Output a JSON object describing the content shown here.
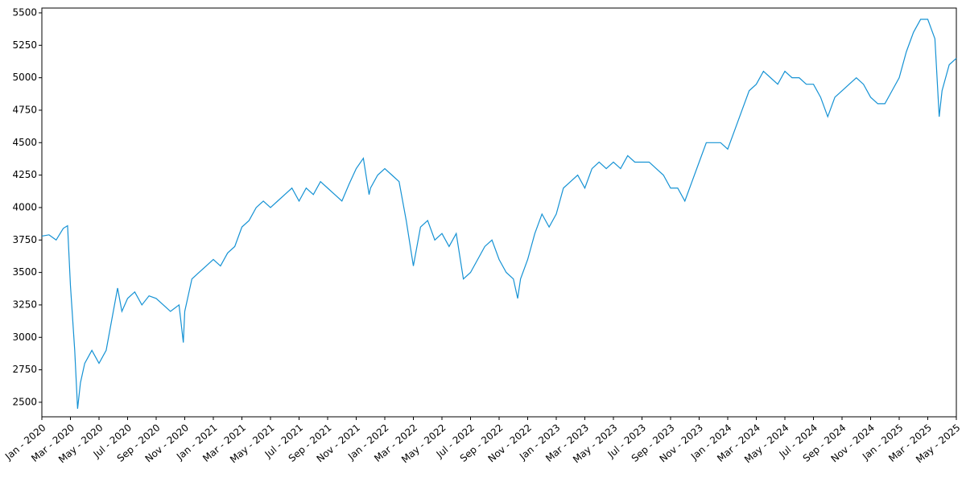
{
  "chart_data": {
    "type": "line",
    "x": [
      0,
      0.5,
      1,
      1.5,
      1.8,
      2,
      2.3,
      2.5,
      2.7,
      3,
      3.5,
      4,
      4.5,
      5,
      5.3,
      5.6,
      6,
      6.5,
      7,
      7.5,
      8,
      8.5,
      9,
      9.6,
      9.9,
      10,
      10.5,
      11,
      11.5,
      12,
      12.5,
      13,
      13.5,
      14,
      14.5,
      15,
      15.5,
      16,
      16.5,
      17,
      17.5,
      18,
      18.5,
      19,
      19.5,
      20,
      20.5,
      21,
      21.5,
      22,
      22.5,
      22.9,
      23,
      23.5,
      24,
      24.5,
      25,
      25.5,
      26,
      26.5,
      27,
      27.5,
      28,
      28.5,
      29,
      29.5,
      30,
      30.5,
      31,
      31.5,
      32,
      32.5,
      33,
      33.3,
      33.5,
      34,
      34.5,
      35,
      35.5,
      36,
      36.5,
      37,
      37.5,
      38,
      38.5,
      39,
      39.5,
      40,
      40.5,
      41,
      41.5,
      42,
      42.5,
      43,
      43.5,
      44,
      44.5,
      45,
      45.5,
      46,
      46.5,
      47,
      47.5,
      48,
      48.5,
      49,
      49.5,
      50,
      50.5,
      51,
      51.5,
      52,
      52.5,
      53,
      53.5,
      54,
      54.5,
      55,
      55.5,
      56,
      56.5,
      57,
      57.5,
      58,
      58.5,
      59,
      59.5,
      60,
      60.5,
      61,
      61.5,
      62,
      62.5,
      62.8,
      63,
      63.5,
      64
    ],
    "series": [
      {
        "color": "#1592d4",
        "values": [
          3780,
          3790,
          3750,
          3840,
          3860,
          3400,
          2900,
          2450,
          2650,
          2800,
          2900,
          2800,
          2900,
          3200,
          3380,
          3200,
          3300,
          3350,
          3250,
          3320,
          3300,
          3250,
          3200,
          3250,
          2960,
          3200,
          3450,
          3500,
          3550,
          3600,
          3550,
          3650,
          3700,
          3850,
          3900,
          4000,
          4050,
          4000,
          4050,
          4100,
          4150,
          4050,
          4150,
          4100,
          4200,
          4150,
          4100,
          4050,
          4180,
          4300,
          4380,
          4100,
          4150,
          4250,
          4300,
          4250,
          4200,
          3900,
          3550,
          3850,
          3900,
          3750,
          3800,
          3700,
          3800,
          3450,
          3500,
          3600,
          3700,
          3750,
          3600,
          3500,
          3450,
          3300,
          3450,
          3600,
          3800,
          3950,
          3850,
          3950,
          4150,
          4200,
          4250,
          4150,
          4300,
          4350,
          4300,
          4350,
          4300,
          4400,
          4350,
          4350,
          4350,
          4300,
          4250,
          4150,
          4150,
          4050,
          4200,
          4350,
          4500,
          4500,
          4500,
          4450,
          4600,
          4750,
          4900,
          4950,
          5050,
          5000,
          4950,
          5050,
          5000,
          5000,
          4950,
          4950,
          4850,
          4700,
          4850,
          4900,
          4950,
          5000,
          4950,
          4850,
          4800,
          4800,
          4900,
          5000,
          5200,
          5350,
          5450,
          5450,
          5300,
          4700,
          4900,
          5100,
          5150
        ]
      }
    ],
    "xlim": [
      0,
      64
    ],
    "xticks": [
      {
        "value": 0,
        "label": "Jan - 2020"
      },
      {
        "value": 2,
        "label": "Mar - 2020"
      },
      {
        "value": 4,
        "label": "May - 2020"
      },
      {
        "value": 6,
        "label": "Jul - 2020"
      },
      {
        "value": 8,
        "label": "Sep - 2020"
      },
      {
        "value": 10,
        "label": "Nov - 2020"
      },
      {
        "value": 12,
        "label": "Jan - 2021"
      },
      {
        "value": 14,
        "label": "Mar - 2021"
      },
      {
        "value": 16,
        "label": "May - 2021"
      },
      {
        "value": 18,
        "label": "Jul - 2021"
      },
      {
        "value": 20,
        "label": "Sep - 2021"
      },
      {
        "value": 22,
        "label": "Nov - 2021"
      },
      {
        "value": 24,
        "label": "Jan - 2022"
      },
      {
        "value": 26,
        "label": "Mar - 2022"
      },
      {
        "value": 28,
        "label": "May - 2022"
      },
      {
        "value": 30,
        "label": "Jul - 2022"
      },
      {
        "value": 32,
        "label": "Sep - 2022"
      },
      {
        "value": 34,
        "label": "Nov - 2022"
      },
      {
        "value": 36,
        "label": "Jan - 2023"
      },
      {
        "value": 38,
        "label": "Mar - 2023"
      },
      {
        "value": 40,
        "label": "May - 2023"
      },
      {
        "value": 42,
        "label": "Jul - 2023"
      },
      {
        "value": 44,
        "label": "Sep - 2023"
      },
      {
        "value": 46,
        "label": "Nov - 2023"
      },
      {
        "value": 48,
        "label": "Jan - 2024"
      },
      {
        "value": 50,
        "label": "Mar - 2024"
      },
      {
        "value": 52,
        "label": "May - 2024"
      },
      {
        "value": 54,
        "label": "Jul - 2024"
      },
      {
        "value": 56,
        "label": "Sep - 2024"
      },
      {
        "value": 58,
        "label": "Nov - 2024"
      },
      {
        "value": 60,
        "label": "Jan - 2025"
      },
      {
        "value": 62,
        "label": "Mar - 2025"
      },
      {
        "value": 64,
        "label": "May - 2025"
      }
    ],
    "ylim": [
      2388,
      5537
    ],
    "yticks": [
      2500,
      2750,
      3000,
      3250,
      3500,
      3750,
      4000,
      4250,
      4500,
      4750,
      5000,
      5250,
      5500
    ]
  }
}
